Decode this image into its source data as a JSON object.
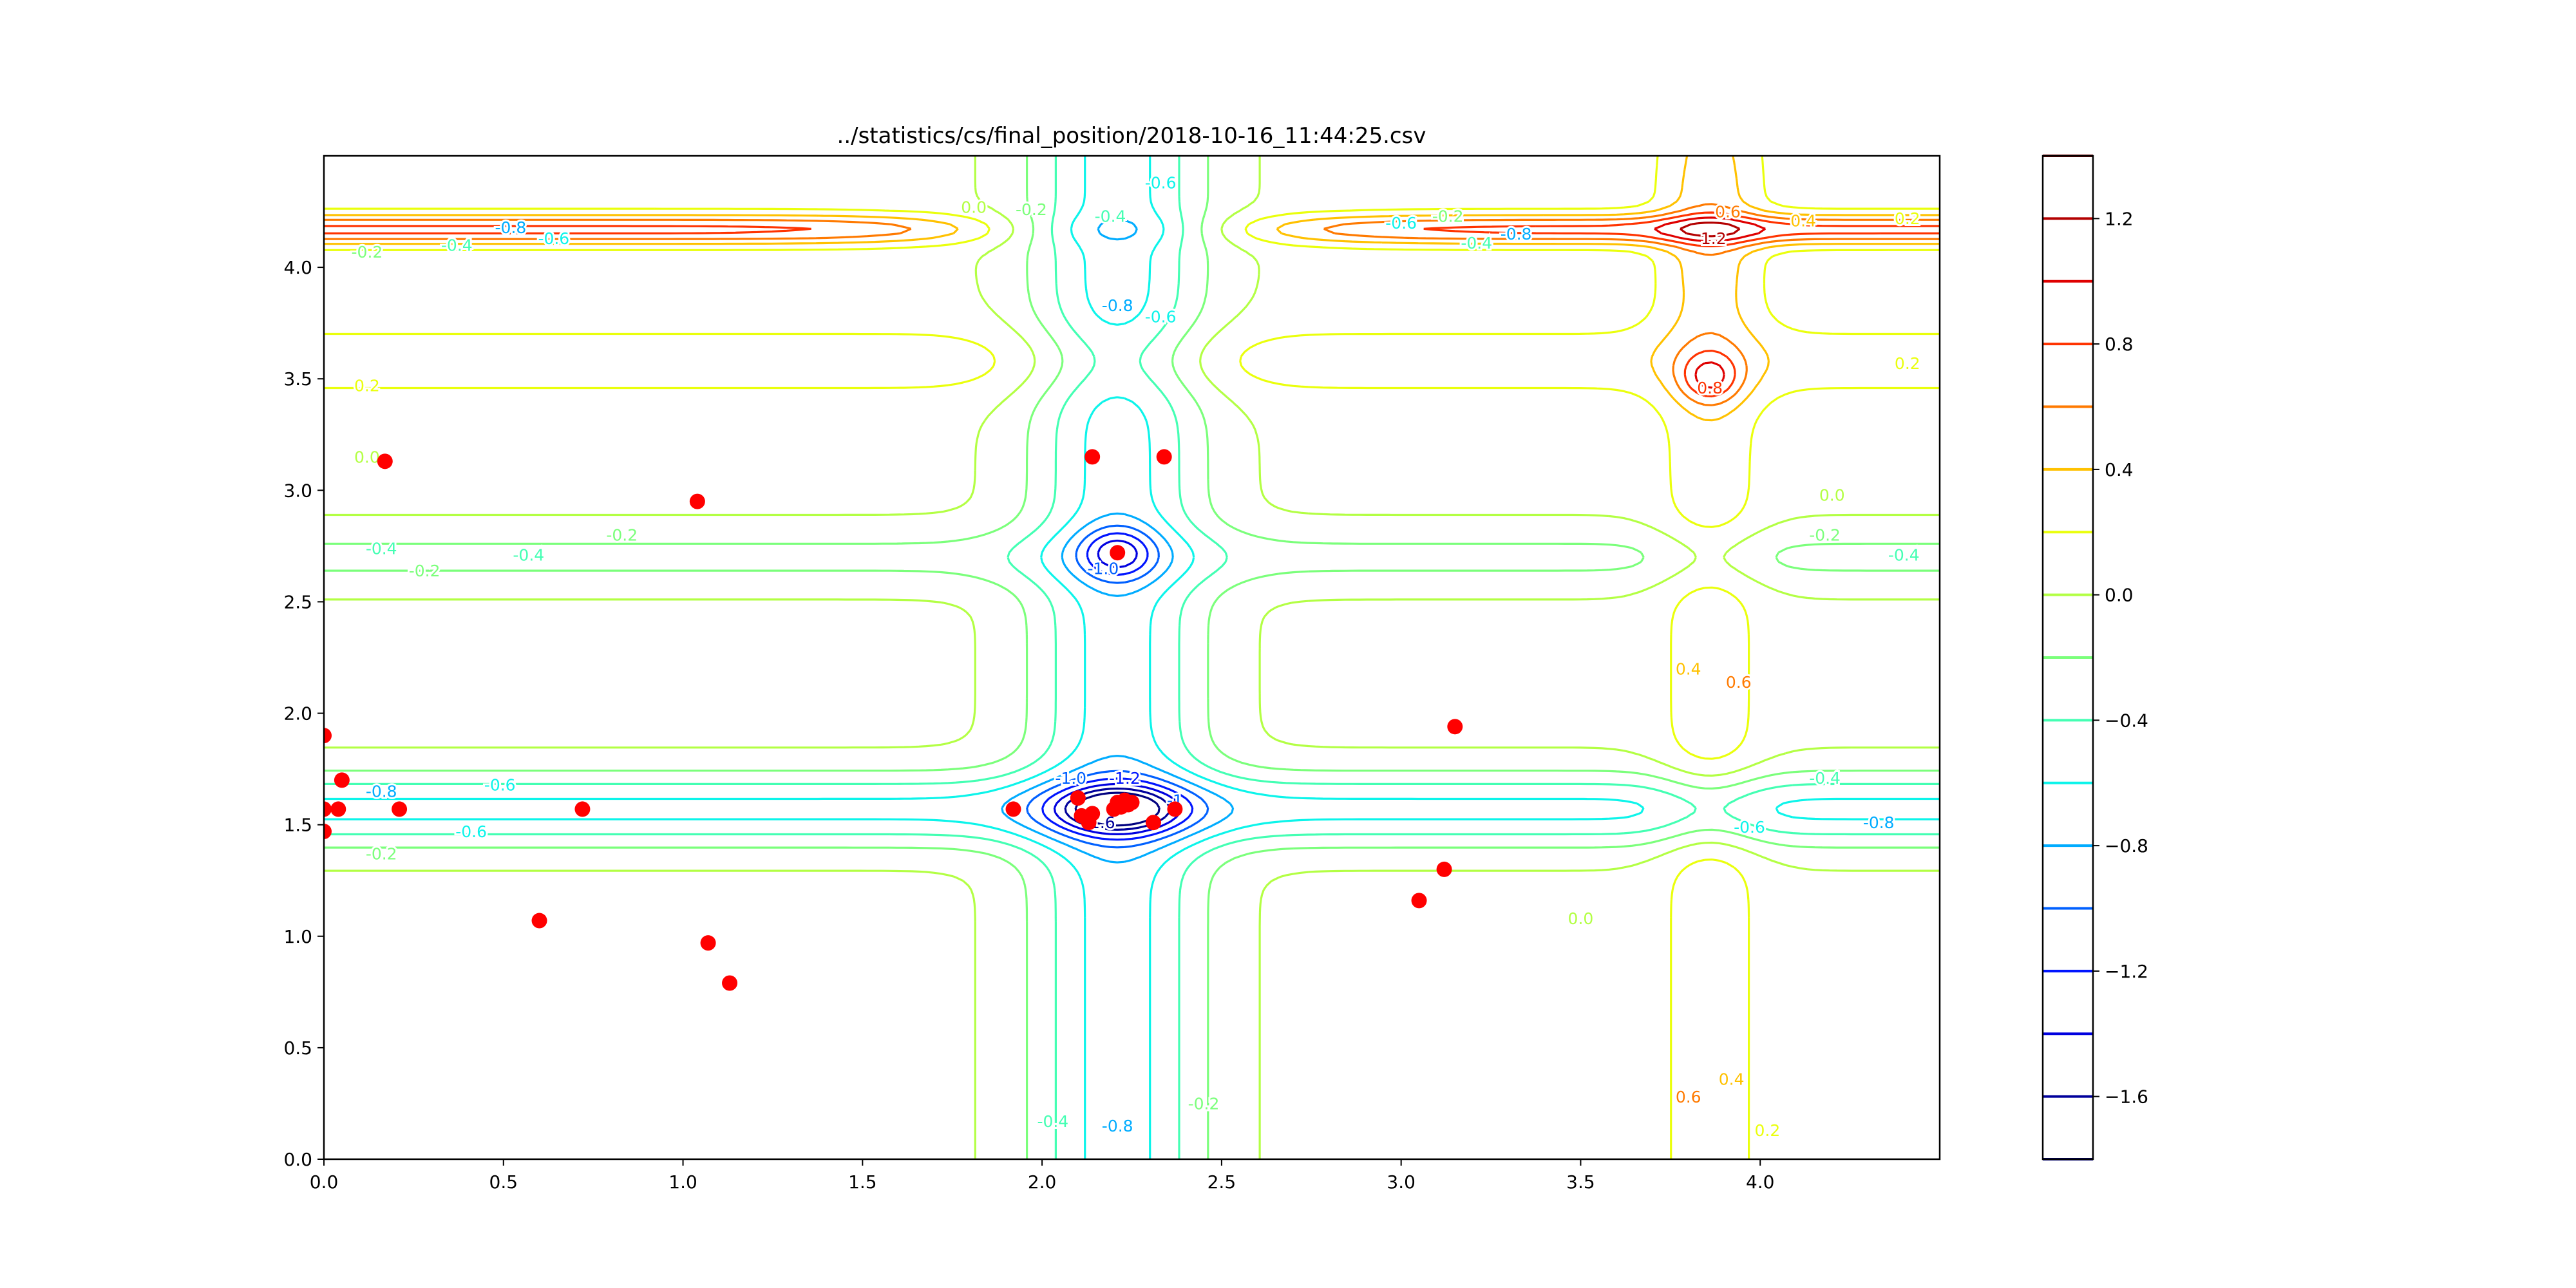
{
  "chart_data": {
    "type": "contour",
    "title": "../statistics/cs/final_position/2018-10-16_11:44:25.csv",
    "xlabel": "",
    "ylabel": "",
    "xlim": [
      0.0,
      4.5
    ],
    "ylim": [
      0.0,
      4.5
    ],
    "x_ticks": [
      0.0,
      0.5,
      1.0,
      1.5,
      2.0,
      2.5,
      3.0,
      3.5,
      4.0
    ],
    "x_tick_labels": [
      "0.0",
      "0.5",
      "1.0",
      "1.5",
      "2.0",
      "2.5",
      "3.0",
      "3.5",
      "4.0"
    ],
    "y_ticks": [
      0.0,
      0.5,
      1.0,
      1.5,
      2.0,
      2.5,
      3.0,
      3.5,
      4.0
    ],
    "y_tick_labels": [
      "0.0",
      "0.5",
      "1.0",
      "1.5",
      "2.0",
      "2.5",
      "3.0",
      "3.5",
      "4.0"
    ],
    "grid": false,
    "colormap": "jet",
    "levels": [
      -1.8,
      -1.6,
      -1.4,
      -1.2,
      -1.0,
      -0.8,
      -0.6,
      -0.4,
      -0.2,
      0.0,
      0.2,
      0.4,
      0.6,
      0.8,
      1.0,
      1.2,
      1.4
    ],
    "level_colors": [
      "#00007f",
      "#00009b",
      "#0000df",
      "#0014ff",
      "#0060ff",
      "#00acff",
      "#0cf4ea",
      "#44ffb3",
      "#7bff7b",
      "#b3ff44",
      "#eaff0c",
      "#ffc100",
      "#ff7a00",
      "#ff3300",
      "#df0000",
      "#b30000",
      "#7f0000"
    ],
    "colorbar": {
      "ticks": [
        -1.6,
        -1.2,
        -0.8,
        -0.4,
        0.0,
        0.4,
        0.8,
        1.2
      ],
      "tick_labels": [
        "−1.6",
        "−1.2",
        "−0.8",
        "−0.4",
        "0.0",
        "0.4",
        "0.8",
        "1.2"
      ],
      "range": [
        -1.8,
        1.4
      ]
    },
    "contour_labels": [
      {
        "text": "0.0",
        "x": 1.81,
        "y": 4.27
      },
      {
        "text": "-0.2",
        "x": 1.97,
        "y": 4.26
      },
      {
        "text": "-0.4",
        "x": 2.19,
        "y": 4.23
      },
      {
        "text": "-0.6",
        "x": 2.33,
        "y": 4.38
      },
      {
        "text": "-0.8",
        "x": 0.52,
        "y": 4.18
      },
      {
        "text": "-0.6",
        "x": 0.64,
        "y": 4.13
      },
      {
        "text": "-0.4",
        "x": 0.37,
        "y": 4.1
      },
      {
        "text": "-0.2",
        "x": 0.12,
        "y": 4.07
      },
      {
        "text": "-0.6",
        "x": 3.0,
        "y": 4.2
      },
      {
        "text": "-0.2",
        "x": 3.13,
        "y": 4.23
      },
      {
        "text": "-0.8",
        "x": 3.32,
        "y": 4.15
      },
      {
        "text": "-0.4",
        "x": 3.21,
        "y": 4.11
      },
      {
        "text": "0.6",
        "x": 3.91,
        "y": 4.25
      },
      {
        "text": "1.2",
        "x": 3.87,
        "y": 4.13
      },
      {
        "text": "0.4",
        "x": 4.12,
        "y": 4.21
      },
      {
        "text": "0.2",
        "x": 4.41,
        "y": 4.22
      },
      {
        "text": "-0.8",
        "x": 2.21,
        "y": 3.83
      },
      {
        "text": "-0.6",
        "x": 2.33,
        "y": 3.78
      },
      {
        "text": "0.2",
        "x": 0.12,
        "y": 3.47
      },
      {
        "text": "0.2",
        "x": 4.41,
        "y": 3.57
      },
      {
        "text": "0.8",
        "x": 3.86,
        "y": 3.46
      },
      {
        "text": "0.0",
        "x": 0.12,
        "y": 3.15
      },
      {
        "text": "0.0",
        "x": 4.2,
        "y": 2.98
      },
      {
        "text": "-0.2",
        "x": 0.83,
        "y": 2.8
      },
      {
        "text": "-0.2",
        "x": 4.18,
        "y": 2.8
      },
      {
        "text": "-0.4",
        "x": 0.16,
        "y": 2.74
      },
      {
        "text": "-0.4",
        "x": 0.57,
        "y": 2.71
      },
      {
        "text": "-0.4",
        "x": 4.4,
        "y": 2.71
      },
      {
        "text": "-0.2",
        "x": 0.28,
        "y": 2.64
      },
      {
        "text": "-1.0",
        "x": 2.17,
        "y": 2.65
      },
      {
        "text": "0.4",
        "x": 3.8,
        "y": 2.2
      },
      {
        "text": "0.6",
        "x": 3.94,
        "y": 2.14
      },
      {
        "text": "-1.0",
        "x": 2.08,
        "y": 1.71
      },
      {
        "text": "-1.2",
        "x": 2.23,
        "y": 1.71
      },
      {
        "text": "-1",
        "x": 2.37,
        "y": 1.61
      },
      {
        "text": "-1.6",
        "x": 2.16,
        "y": 1.51
      },
      {
        "text": "-0.8",
        "x": 0.16,
        "y": 1.65
      },
      {
        "text": "-0.6",
        "x": 0.49,
        "y": 1.68
      },
      {
        "text": "-0.4",
        "x": 4.18,
        "y": 1.71
      },
      {
        "text": "-0.6",
        "x": 3.97,
        "y": 1.49
      },
      {
        "text": "-0.8",
        "x": 4.33,
        "y": 1.51
      },
      {
        "text": "-0.6",
        "x": 0.41,
        "y": 1.47
      },
      {
        "text": "-0.2",
        "x": 0.16,
        "y": 1.37
      },
      {
        "text": "0.0",
        "x": 3.5,
        "y": 1.08
      },
      {
        "text": "-0.4",
        "x": 2.03,
        "y": 0.17
      },
      {
        "text": "-0.8",
        "x": 2.21,
        "y": 0.15
      },
      {
        "text": "-0.2",
        "x": 2.45,
        "y": 0.25
      },
      {
        "text": "0.6",
        "x": 3.8,
        "y": 0.28
      },
      {
        "text": "0.4",
        "x": 3.92,
        "y": 0.36
      },
      {
        "text": "0.2",
        "x": 4.02,
        "y": 0.13
      }
    ],
    "points": {
      "color": "#ff0000",
      "x": [
        0.0,
        0.0,
        0.0,
        0.04,
        0.05,
        0.17,
        0.21,
        0.6,
        0.72,
        1.04,
        1.07,
        1.13,
        1.92,
        2.1,
        2.11,
        2.13,
        2.14,
        2.2,
        2.21,
        2.22,
        2.23,
        2.24,
        2.25,
        2.31,
        2.37,
        2.14,
        2.34,
        2.21,
        3.05,
        3.12,
        3.15
      ],
      "y": [
        1.47,
        1.57,
        1.9,
        1.57,
        1.7,
        3.13,
        1.57,
        1.07,
        1.57,
        2.95,
        0.97,
        0.79,
        1.57,
        1.62,
        1.54,
        1.51,
        1.55,
        1.57,
        1.6,
        1.58,
        1.61,
        1.59,
        1.6,
        1.51,
        1.57,
        3.15,
        3.15,
        2.72,
        1.16,
        1.3,
        1.94
      ]
    }
  }
}
